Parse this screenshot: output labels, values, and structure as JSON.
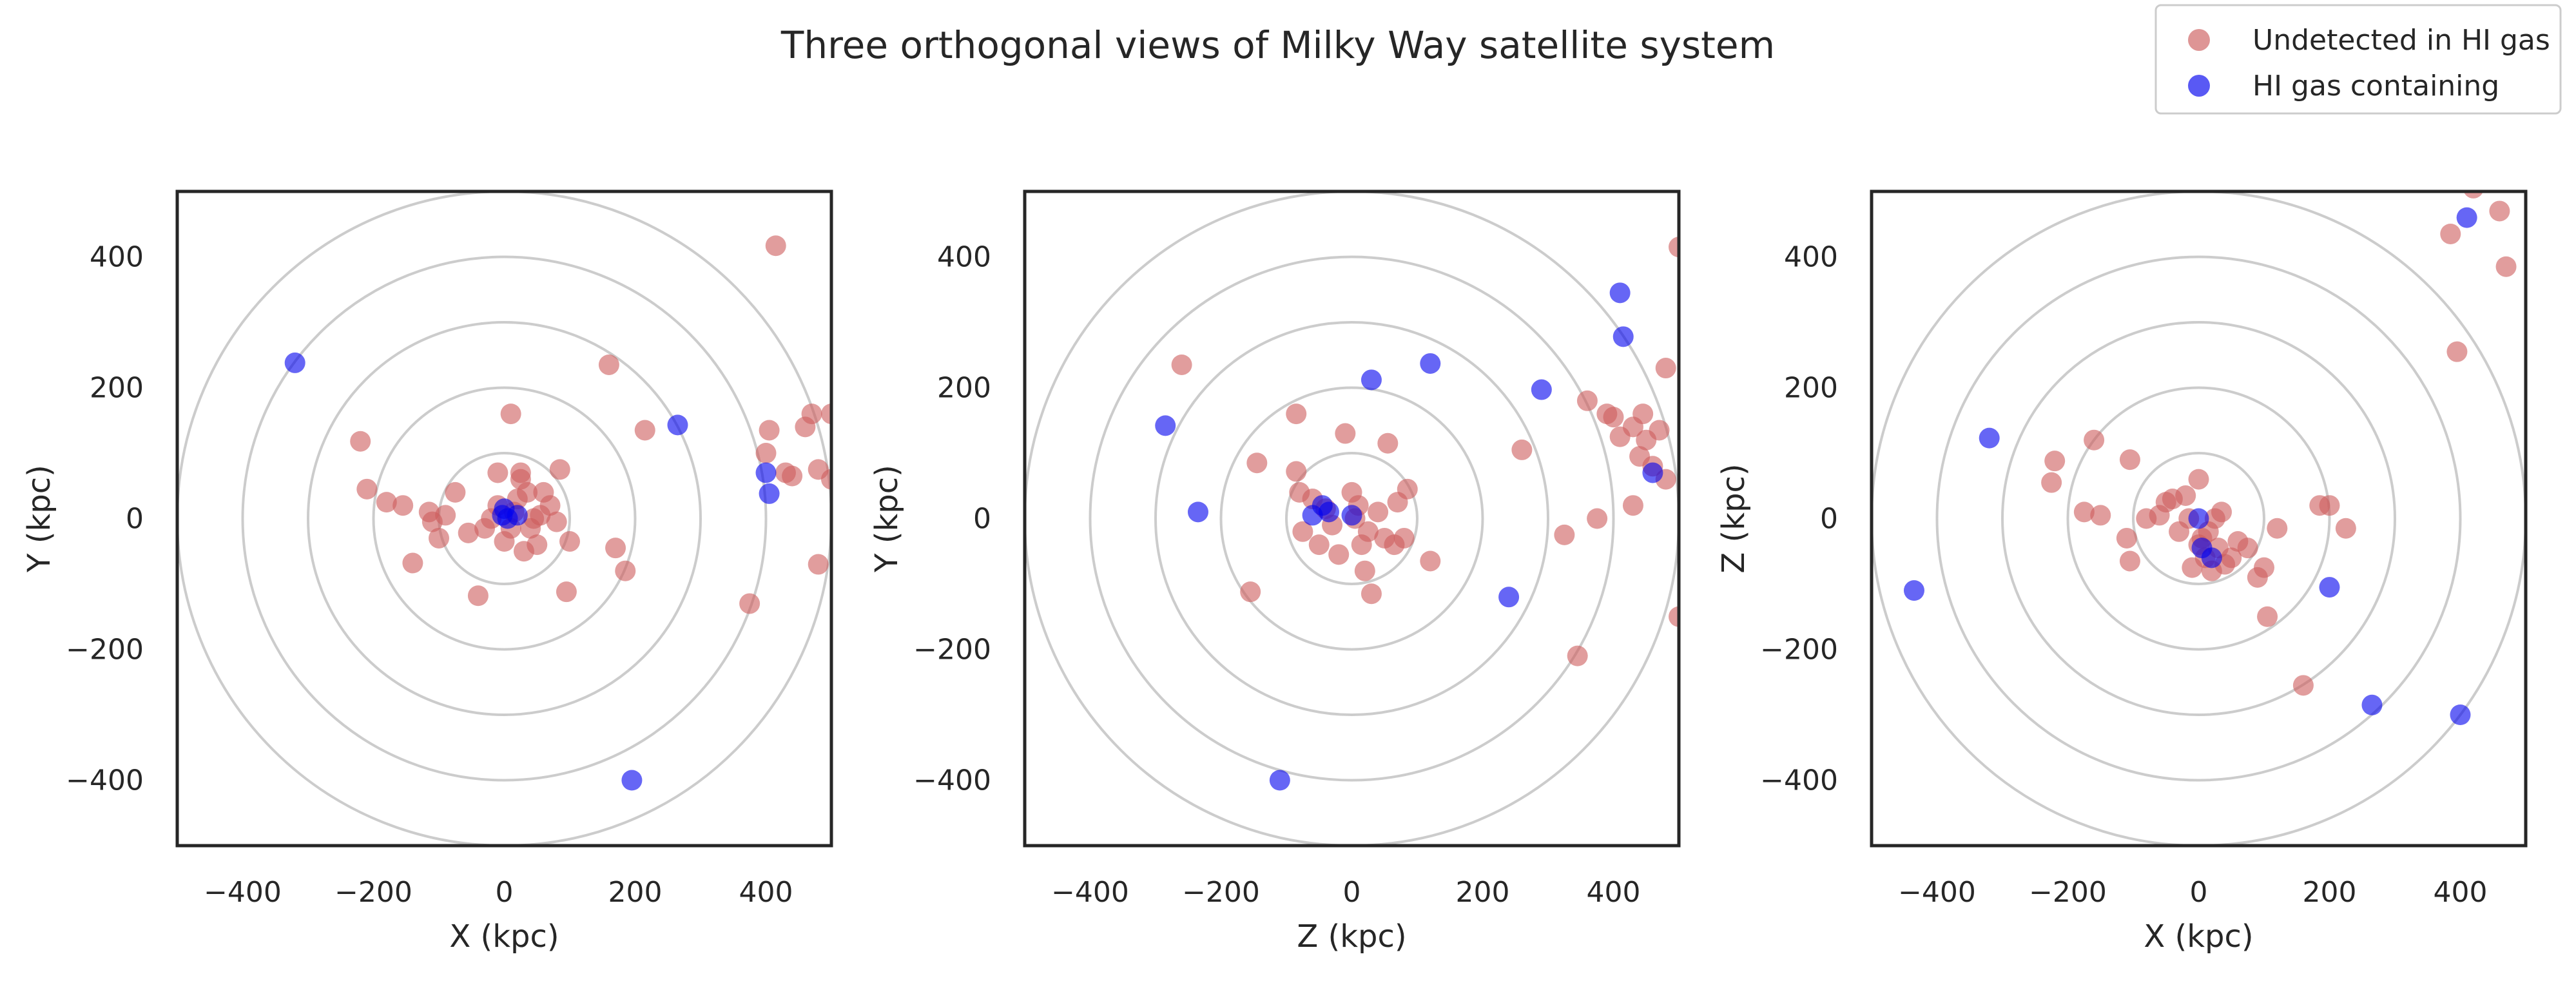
{
  "title": "Three orthogonal views of Milky Way satellite system",
  "legend": {
    "items": [
      {
        "label": "Undetected in HI gas",
        "color": "#CD5C5C"
      },
      {
        "label": "HI gas containing",
        "color": "#0000EE"
      }
    ],
    "placement": "top-right"
  },
  "colors": {
    "undetected": "#CD5C5C",
    "gas": "#0000EE",
    "ring": "#cccccc",
    "frame": "#262626"
  },
  "chart_data": [
    {
      "type": "scatter",
      "xlabel": "X (kpc)",
      "ylabel": "Y (kpc)",
      "xlim": [
        -500,
        500
      ],
      "ylim": [
        -500,
        500
      ],
      "xticks": [
        "−400",
        "−200",
        "0",
        "200",
        "400"
      ],
      "yticks": [
        "−400",
        "−200",
        "0",
        "200",
        "400"
      ],
      "grid": "concentric circles at radii 100, 200, 300, 400, 500",
      "series": [
        {
          "name": "Undetected in HI gas",
          "points": [
            [
              415,
              417
            ],
            [
              160,
              235
            ],
            [
              -220,
              118
            ],
            [
              -210,
              45
            ],
            [
              -180,
              25
            ],
            [
              -155,
              20
            ],
            [
              -140,
              -68
            ],
            [
              -110,
              -5
            ],
            [
              -100,
              -30
            ],
            [
              -115,
              10
            ],
            [
              -90,
              5
            ],
            [
              -75,
              40
            ],
            [
              -55,
              -22
            ],
            [
              -40,
              -118
            ],
            [
              -30,
              -15
            ],
            [
              -20,
              0
            ],
            [
              -10,
              20
            ],
            [
              0,
              -35
            ],
            [
              10,
              -15
            ],
            [
              15,
              10
            ],
            [
              20,
              30
            ],
            [
              25,
              60
            ],
            [
              30,
              -50
            ],
            [
              35,
              40
            ],
            [
              40,
              -15
            ],
            [
              45,
              0
            ],
            [
              50,
              -40
            ],
            [
              55,
              5
            ],
            [
              60,
              40
            ],
            [
              70,
              20
            ],
            [
              80,
              -5
            ],
            [
              85,
              75
            ],
            [
              95,
              -112
            ],
            [
              100,
              -35
            ],
            [
              170,
              -45
            ],
            [
              185,
              -80
            ],
            [
              215,
              135
            ],
            [
              10,
              160
            ],
            [
              25,
              70
            ],
            [
              -10,
              70
            ],
            [
              375,
              -130
            ],
            [
              400,
              100
            ],
            [
              405,
              135
            ],
            [
              430,
              70
            ],
            [
              440,
              65
            ],
            [
              460,
              140
            ],
            [
              470,
              160
            ],
            [
              480,
              75
            ],
            [
              480,
              -70
            ],
            [
              500,
              160
            ],
            [
              500,
              60
            ]
          ]
        },
        {
          "name": "HI gas containing",
          "points": [
            [
              -320,
              238
            ],
            [
              265,
              143
            ],
            [
              400,
              70
            ],
            [
              405,
              38
            ],
            [
              195,
              -400
            ],
            [
              0,
              15
            ],
            [
              5,
              0
            ],
            [
              -3,
              5
            ],
            [
              20,
              5
            ]
          ]
        }
      ]
    },
    {
      "type": "scatter",
      "xlabel": "Z (kpc)",
      "ylabel": "Y (kpc)",
      "xlim": [
        -500,
        500
      ],
      "ylim": [
        -500,
        500
      ],
      "xticks": [
        "−400",
        "−200",
        "0",
        "200",
        "400"
      ],
      "yticks": [
        "−400",
        "−200",
        "0",
        "200",
        "400"
      ],
      "grid": "concentric circles at radii 100, 200, 300, 400, 500",
      "series": [
        {
          "name": "Undetected in HI gas",
          "points": [
            [
              -260,
              235
            ],
            [
              -155,
              -112
            ],
            [
              -145,
              85
            ],
            [
              -85,
              160
            ],
            [
              -85,
              72
            ],
            [
              -80,
              40
            ],
            [
              -75,
              -20
            ],
            [
              -60,
              30
            ],
            [
              -50,
              -40
            ],
            [
              -40,
              15
            ],
            [
              -30,
              -10
            ],
            [
              -20,
              -55
            ],
            [
              -10,
              130
            ],
            [
              0,
              40
            ],
            [
              5,
              0
            ],
            [
              10,
              20
            ],
            [
              15,
              -40
            ],
            [
              20,
              -80
            ],
            [
              25,
              -20
            ],
            [
              30,
              -115
            ],
            [
              40,
              10
            ],
            [
              50,
              -30
            ],
            [
              55,
              115
            ],
            [
              65,
              -40
            ],
            [
              70,
              25
            ],
            [
              80,
              -30
            ],
            [
              85,
              45
            ],
            [
              120,
              -65
            ],
            [
              260,
              105
            ],
            [
              325,
              -25
            ],
            [
              345,
              -210
            ],
            [
              360,
              180
            ],
            [
              375,
              0
            ],
            [
              390,
              160
            ],
            [
              400,
              155
            ],
            [
              410,
              125
            ],
            [
              430,
              20
            ],
            [
              430,
              140
            ],
            [
              440,
              95
            ],
            [
              445,
              160
            ],
            [
              450,
              120
            ],
            [
              460,
              80
            ],
            [
              470,
              135
            ],
            [
              480,
              230
            ],
            [
              480,
              60
            ],
            [
              500,
              415
            ],
            [
              500,
              -150
            ]
          ]
        },
        {
          "name": "HI gas containing",
          "points": [
            [
              -285,
              142
            ],
            [
              -235,
              10
            ],
            [
              -110,
              -400
            ],
            [
              -60,
              5
            ],
            [
              -45,
              20
            ],
            [
              -35,
              10
            ],
            [
              0,
              5
            ],
            [
              30,
              212
            ],
            [
              120,
              237
            ],
            [
              240,
              -120
            ],
            [
              290,
              197
            ],
            [
              410,
              345
            ],
            [
              415,
              278
            ],
            [
              460,
              70
            ]
          ]
        }
      ]
    },
    {
      "type": "scatter",
      "xlabel": "X (kpc)",
      "ylabel": "Z (kpc)",
      "xlim": [
        -500,
        500
      ],
      "ylim": [
        -500,
        500
      ],
      "xticks": [
        "−400",
        "−200",
        "0",
        "200",
        "400"
      ],
      "yticks": [
        "−400",
        "−200",
        "0",
        "200",
        "400"
      ],
      "grid": "concentric circles at radii 100, 200, 300, 400, 500",
      "series": [
        {
          "name": "Undetected in HI gas",
          "points": [
            [
              -225,
              55
            ],
            [
              -220,
              88
            ],
            [
              -175,
              10
            ],
            [
              -160,
              120
            ],
            [
              -150,
              5
            ],
            [
              -110,
              -30
            ],
            [
              -105,
              -65
            ],
            [
              -105,
              90
            ],
            [
              -80,
              0
            ],
            [
              -60,
              5
            ],
            [
              -50,
              25
            ],
            [
              -40,
              30
            ],
            [
              -30,
              -20
            ],
            [
              -20,
              35
            ],
            [
              -15,
              0
            ],
            [
              -10,
              -75
            ],
            [
              0,
              60
            ],
            [
              0,
              -40
            ],
            [
              5,
              -30
            ],
            [
              10,
              -60
            ],
            [
              15,
              -20
            ],
            [
              20,
              -80
            ],
            [
              25,
              0
            ],
            [
              30,
              -45
            ],
            [
              35,
              10
            ],
            [
              40,
              -70
            ],
            [
              50,
              -60
            ],
            [
              60,
              -35
            ],
            [
              75,
              -45
            ],
            [
              90,
              -90
            ],
            [
              100,
              -75
            ],
            [
              105,
              -150
            ],
            [
              120,
              -15
            ],
            [
              160,
              -255
            ],
            [
              185,
              20
            ],
            [
              200,
              20
            ],
            [
              225,
              -15
            ],
            [
              385,
              435
            ],
            [
              395,
              255
            ],
            [
              420,
              505
            ],
            [
              455,
              515
            ],
            [
              460,
              470
            ],
            [
              470,
              385
            ]
          ]
        },
        {
          "name": "HI gas containing",
          "points": [
            [
              -435,
              -110
            ],
            [
              -320,
              123
            ],
            [
              200,
              -105
            ],
            [
              0,
              0
            ],
            [
              5,
              -45
            ],
            [
              20,
              -60
            ],
            [
              265,
              -285
            ],
            [
              400,
              -300
            ],
            [
              410,
              460
            ]
          ]
        }
      ]
    }
  ]
}
